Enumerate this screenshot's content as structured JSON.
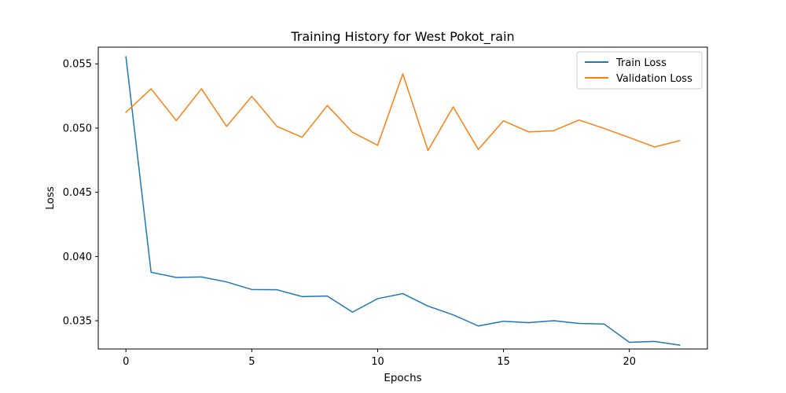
{
  "chart_data": {
    "type": "line",
    "title": "Training History for West Pokot_rain",
    "xlabel": "Epochs",
    "ylabel": "Loss",
    "xlim": [
      -1.1,
      23.1
    ],
    "ylim": [
      0.0328,
      0.0563
    ],
    "x_ticks": [
      0,
      5,
      10,
      15,
      20
    ],
    "y_ticks": [
      0.035,
      0.04,
      0.045,
      0.05,
      0.055
    ],
    "y_tick_labels": [
      "0.035",
      "0.040",
      "0.045",
      "0.050",
      "0.055"
    ],
    "grid": false,
    "legend_position": "top-right",
    "x": [
      0,
      1,
      2,
      3,
      4,
      5,
      6,
      7,
      8,
      9,
      10,
      11,
      12,
      13,
      14,
      15,
      16,
      17,
      18,
      19,
      20,
      21,
      22
    ],
    "series": [
      {
        "name": "Train Loss",
        "color": "#1f77b4",
        "values": [
          0.05555,
          0.03877,
          0.03837,
          0.03841,
          0.03802,
          0.03743,
          0.03741,
          0.03688,
          0.03692,
          0.03567,
          0.03672,
          0.03711,
          0.03614,
          0.03546,
          0.03459,
          0.03496,
          0.03485,
          0.035,
          0.03479,
          0.03474,
          0.03332,
          0.03339,
          0.0331
        ]
      },
      {
        "name": "Validation Loss",
        "color": "#ff7f0e",
        "values": [
          0.05123,
          0.05306,
          0.05058,
          0.05306,
          0.05013,
          0.05247,
          0.05013,
          0.04928,
          0.05176,
          0.04967,
          0.04866,
          0.05422,
          0.04825,
          0.05165,
          0.04834,
          0.05057,
          0.0497,
          0.0498,
          0.05063,
          0.04997,
          0.04926,
          0.04853,
          0.04902
        ]
      }
    ]
  }
}
